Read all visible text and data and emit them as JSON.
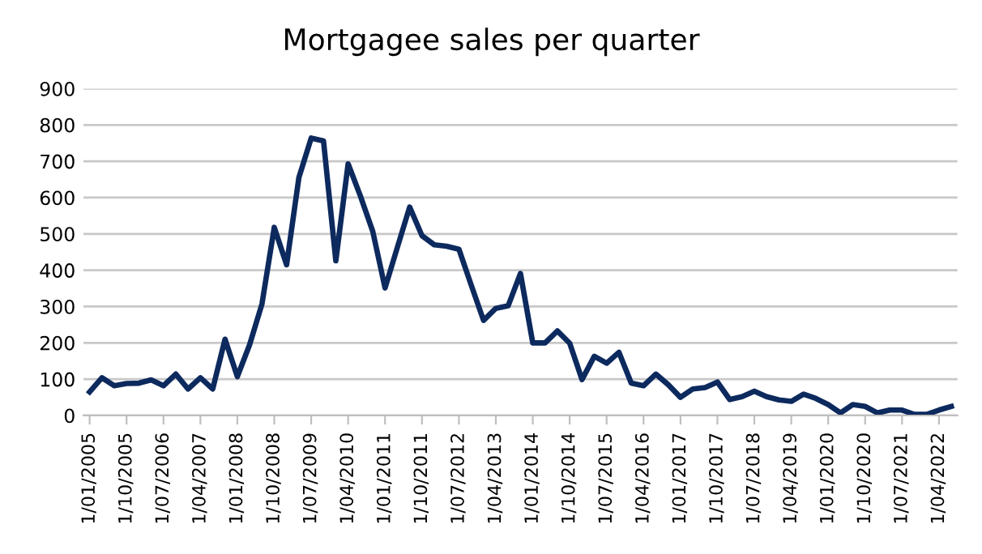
{
  "chart_data": {
    "type": "line",
    "title": "Mortgagee sales per quarter",
    "categories": [
      "1/01/2005",
      null,
      null,
      "1/10/2005",
      null,
      null,
      "1/07/2006",
      null,
      null,
      "1/04/2007",
      null,
      null,
      "1/01/2008",
      null,
      null,
      "1/10/2008",
      null,
      null,
      "1/07/2009",
      null,
      null,
      "1/04/2010",
      null,
      null,
      "1/01/2011",
      null,
      null,
      "1/10/2011",
      null,
      null,
      "1/07/2012",
      null,
      null,
      "1/04/2013",
      null,
      null,
      "1/01/2014",
      null,
      null,
      "1/10/2014",
      null,
      null,
      "1/07/2015",
      null,
      null,
      "1/04/2016",
      null,
      null,
      "1/01/2017",
      null,
      null,
      "1/10/2017",
      null,
      null,
      "1/07/2018",
      null,
      null,
      "1/04/2019",
      null,
      null,
      "1/01/2020",
      null,
      null,
      "1/10/2020",
      null,
      null,
      "1/07/2021",
      null,
      null,
      "1/04/2022",
      null
    ],
    "series": [
      {
        "color": "#0d2a5e",
        "values": [
          65,
          104,
          82,
          88,
          89,
          98,
          82,
          114,
          73,
          104,
          73,
          210,
          107,
          195,
          307,
          518,
          415,
          655,
          764,
          756,
          426,
          693,
          604,
          507,
          351,
          463,
          574,
          495,
          470,
          466,
          458,
          359,
          262,
          295,
          302,
          391,
          200,
          200,
          233,
          199,
          99,
          163,
          144,
          174,
          89,
          82,
          114,
          85,
          50,
          73,
          77,
          92,
          44,
          52,
          67,
          52,
          43,
          39,
          59,
          47,
          30,
          7,
          30,
          25,
          7,
          15,
          15,
          3,
          3,
          15,
          25
        ]
      }
    ],
    "ylim": [
      0,
      900
    ],
    "yticks": [
      0,
      100,
      200,
      300,
      400,
      500,
      600,
      700,
      800,
      900
    ],
    "grid": "y",
    "marker": "none",
    "line_style": "solid"
  }
}
